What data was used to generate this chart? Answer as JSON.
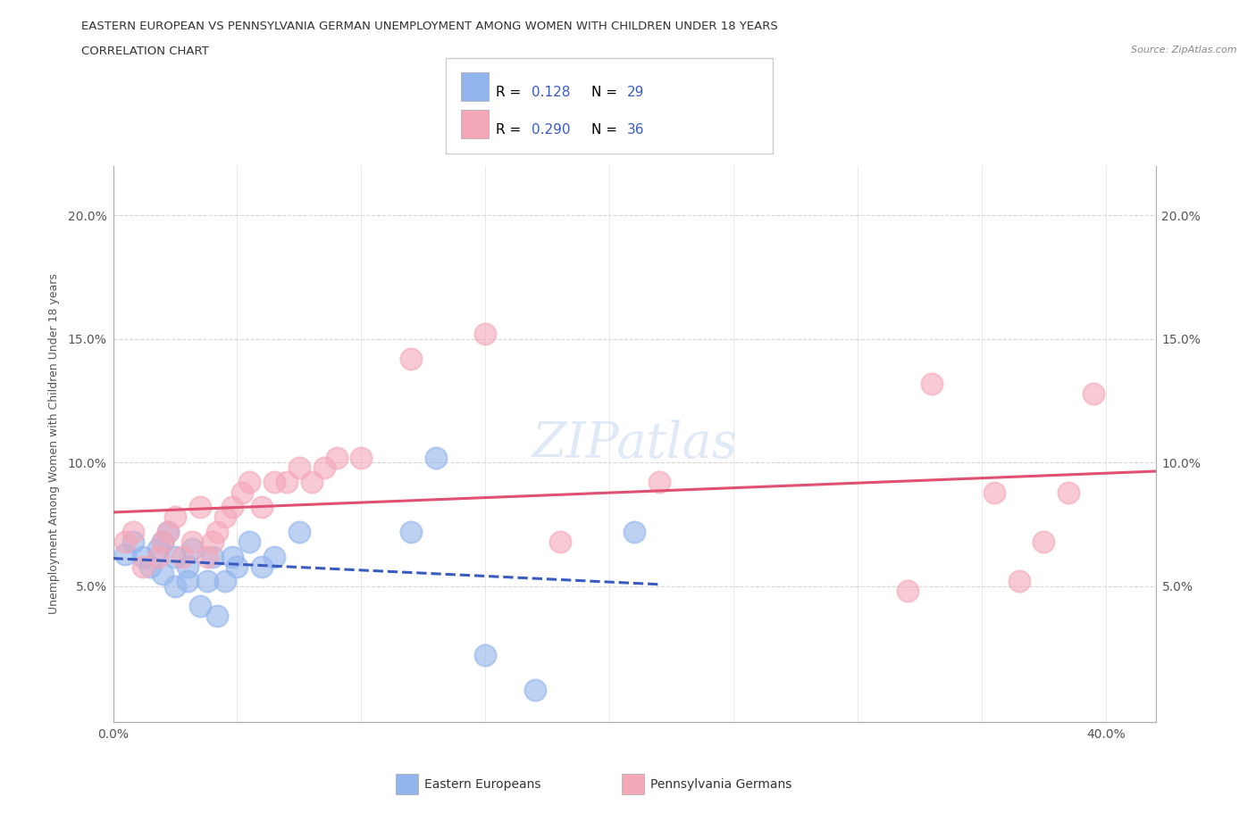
{
  "title_line1": "EASTERN EUROPEAN VS PENNSYLVANIA GERMAN UNEMPLOYMENT AMONG WOMEN WITH CHILDREN UNDER 18 YEARS",
  "title_line2": "CORRELATION CHART",
  "source": "Source: ZipAtlas.com",
  "ylabel": "Unemployment Among Women with Children Under 18 years",
  "xlim": [
    0.0,
    0.42
  ],
  "ylim": [
    -0.005,
    0.22
  ],
  "legend_R_blue": "0.128",
  "legend_N_blue": "29",
  "legend_R_pink": "0.290",
  "legend_N_pink": "36",
  "blue_color": "#92b4ec",
  "pink_color": "#f4a7b9",
  "blue_line_color": "#3a5bbf",
  "pink_line_color": "#e05070",
  "grid_color": "#cccccc",
  "watermark": "ZIPatlas",
  "text_color": "#333333",
  "tick_color": "#555555",
  "blue_scatter_x": [
    0.005,
    0.008,
    0.012,
    0.015,
    0.018,
    0.02,
    0.02,
    0.022,
    0.025,
    0.025,
    0.03,
    0.03,
    0.032,
    0.035,
    0.038,
    0.04,
    0.042,
    0.045,
    0.048,
    0.05,
    0.055,
    0.06,
    0.065,
    0.075,
    0.12,
    0.13,
    0.15,
    0.17,
    0.21
  ],
  "blue_scatter_y": [
    0.063,
    0.068,
    0.062,
    0.058,
    0.065,
    0.055,
    0.068,
    0.072,
    0.05,
    0.062,
    0.052,
    0.058,
    0.065,
    0.042,
    0.052,
    0.062,
    0.038,
    0.052,
    0.062,
    0.058,
    0.068,
    0.058,
    0.062,
    0.072,
    0.072,
    0.102,
    0.022,
    0.008,
    0.072
  ],
  "pink_scatter_x": [
    0.005,
    0.008,
    0.012,
    0.018,
    0.02,
    0.022,
    0.025,
    0.028,
    0.032,
    0.035,
    0.038,
    0.04,
    0.042,
    0.045,
    0.048,
    0.052,
    0.055,
    0.06,
    0.065,
    0.07,
    0.075,
    0.08,
    0.085,
    0.09,
    0.1,
    0.12,
    0.15,
    0.18,
    0.22,
    0.32,
    0.33,
    0.355,
    0.365,
    0.375,
    0.385,
    0.395
  ],
  "pink_scatter_y": [
    0.068,
    0.072,
    0.058,
    0.062,
    0.068,
    0.072,
    0.078,
    0.062,
    0.068,
    0.082,
    0.062,
    0.068,
    0.072,
    0.078,
    0.082,
    0.088,
    0.092,
    0.082,
    0.092,
    0.092,
    0.098,
    0.092,
    0.098,
    0.102,
    0.102,
    0.142,
    0.152,
    0.068,
    0.092,
    0.048,
    0.132,
    0.088,
    0.052,
    0.068,
    0.088,
    0.128
  ]
}
